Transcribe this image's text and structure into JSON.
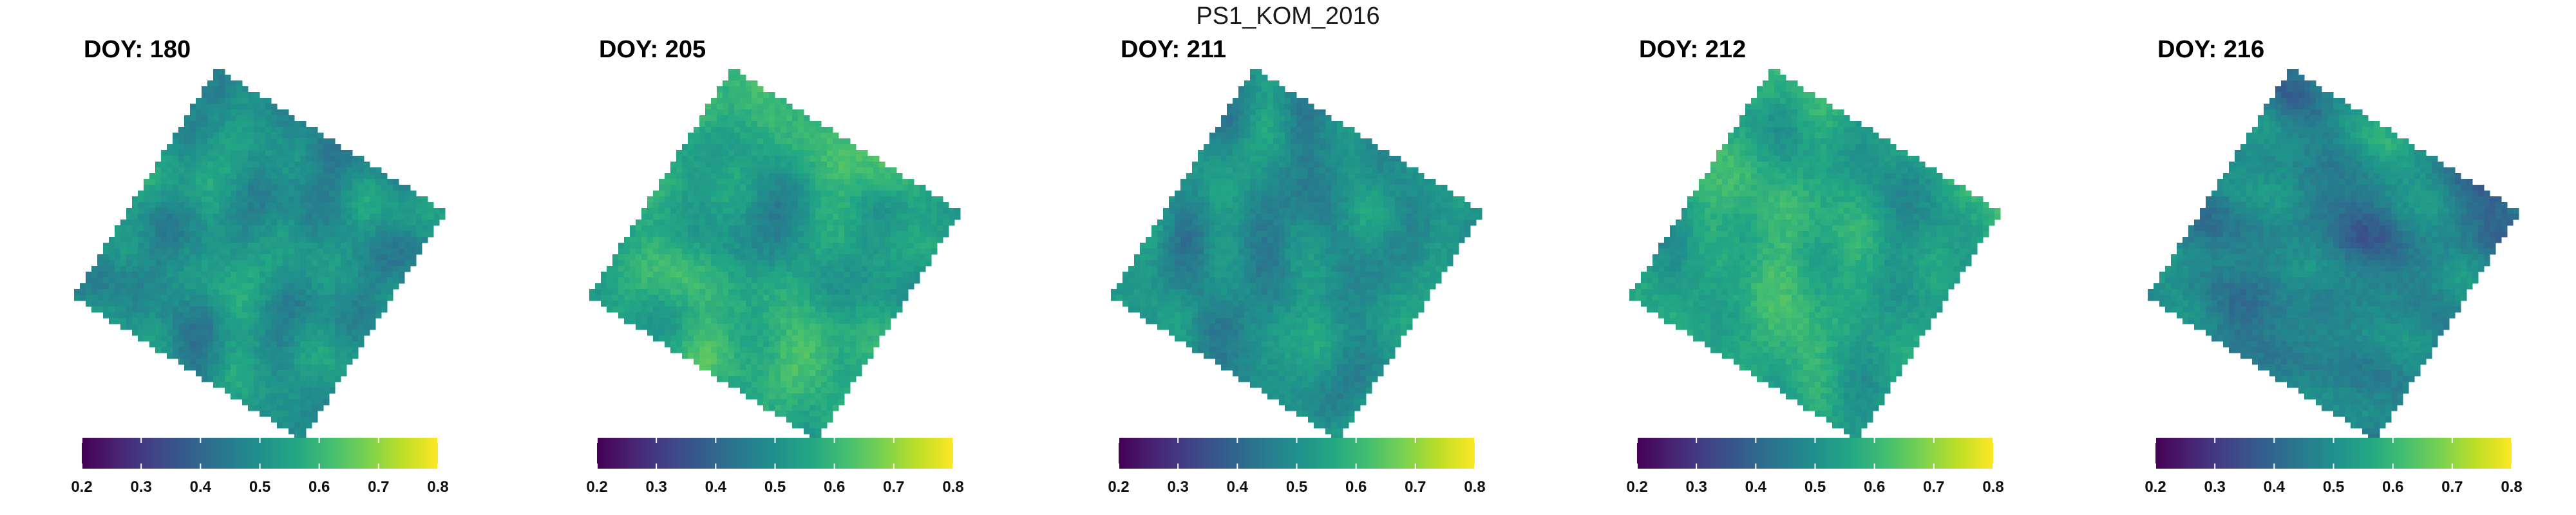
{
  "figure": {
    "title": "PS1_KOM_2016"
  },
  "chart_data": [
    {
      "type": "heatmap",
      "title": "DOY: 180",
      "colormap": "viridis",
      "clim": [
        0.2,
        0.8
      ],
      "colorbar_ticks": [
        0.2,
        0.3,
        0.4,
        0.5,
        0.6,
        0.7,
        0.8
      ],
      "colorbar_tick_labels": [
        "0.2",
        "0.3",
        "0.4",
        "0.5",
        "0.6",
        "0.7",
        "0.8"
      ],
      "mean_value": 0.5,
      "seed": 180
    },
    {
      "type": "heatmap",
      "title": "DOY: 205",
      "colormap": "viridis",
      "clim": [
        0.2,
        0.8
      ],
      "colorbar_ticks": [
        0.2,
        0.3,
        0.4,
        0.5,
        0.6,
        0.7,
        0.8
      ],
      "colorbar_tick_labels": [
        "0.2",
        "0.3",
        "0.4",
        "0.5",
        "0.6",
        "0.7",
        "0.8"
      ],
      "mean_value": 0.56,
      "seed": 205
    },
    {
      "type": "heatmap",
      "title": "DOY: 211",
      "colormap": "viridis",
      "clim": [
        0.2,
        0.8
      ],
      "colorbar_ticks": [
        0.2,
        0.3,
        0.4,
        0.5,
        0.6,
        0.7,
        0.8
      ],
      "colorbar_tick_labels": [
        "0.2",
        "0.3",
        "0.4",
        "0.5",
        "0.6",
        "0.7",
        "0.8"
      ],
      "mean_value": 0.5,
      "seed": 211
    },
    {
      "type": "heatmap",
      "title": "DOY: 212",
      "colormap": "viridis",
      "clim": [
        0.2,
        0.8
      ],
      "colorbar_ticks": [
        0.2,
        0.3,
        0.4,
        0.5,
        0.6,
        0.7,
        0.8
      ],
      "colorbar_tick_labels": [
        "0.2",
        "0.3",
        "0.4",
        "0.5",
        "0.6",
        "0.7",
        "0.8"
      ],
      "mean_value": 0.56,
      "seed": 212
    },
    {
      "type": "heatmap",
      "title": "DOY: 216",
      "colormap": "viridis",
      "clim": [
        0.2,
        0.8
      ],
      "colorbar_ticks": [
        0.2,
        0.3,
        0.4,
        0.5,
        0.6,
        0.7,
        0.8
      ],
      "colorbar_tick_labels": [
        "0.2",
        "0.3",
        "0.4",
        "0.5",
        "0.6",
        "0.7",
        "0.8"
      ],
      "mean_value": 0.47,
      "seed": 216
    }
  ]
}
